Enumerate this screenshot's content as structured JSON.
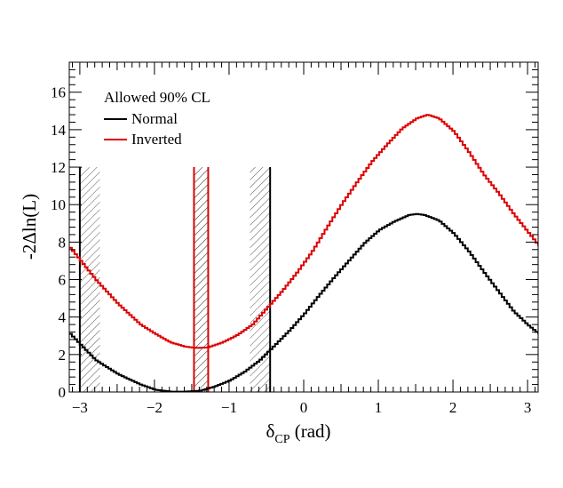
{
  "chart_data": {
    "type": "line",
    "title": "",
    "xlabel": {
      "main": "δ",
      "sub": "CP",
      "rest": " (rad)"
    },
    "ylabel": "-2Δln(L)",
    "xlim": [
      -3.1416,
      3.1416
    ],
    "ylim": [
      0,
      17.6
    ],
    "x_ticks": [
      {
        "value": -3,
        "label": "−3"
      },
      {
        "value": -2,
        "label": "−2"
      },
      {
        "value": -1,
        "label": "−1"
      },
      {
        "value": 0,
        "label": "0"
      },
      {
        "value": 1,
        "label": "1"
      },
      {
        "value": 2,
        "label": "2"
      },
      {
        "value": 3,
        "label": "3"
      }
    ],
    "y_ticks": [
      {
        "value": 0,
        "label": "0"
      },
      {
        "value": 2,
        "label": "2"
      },
      {
        "value": 4,
        "label": "4"
      },
      {
        "value": 6,
        "label": "6"
      },
      {
        "value": 8,
        "label": "8"
      },
      {
        "value": 10,
        "label": "10"
      },
      {
        "value": 12,
        "label": "12"
      },
      {
        "value": 14,
        "label": "14"
      },
      {
        "value": 16,
        "label": "16"
      }
    ],
    "legend": {
      "header": "Allowed 90% CL",
      "placement": "top-left",
      "entries": [
        {
          "label": "Normal",
          "color": "#000000"
        },
        {
          "label": "Inverted",
          "color": "#dd0000"
        }
      ]
    },
    "series": [
      {
        "name": "Normal",
        "color": "#000000",
        "x": [
          -3.1416,
          -2.8,
          -2.5,
          -2.2,
          -2.0,
          -1.8,
          -1.6,
          -1.4,
          -1.2,
          -1.0,
          -0.8,
          -0.6,
          -0.4,
          -0.2,
          0.0,
          0.2,
          0.4,
          0.6,
          0.8,
          1.0,
          1.2,
          1.4,
          1.5,
          1.6,
          1.8,
          2.0,
          2.2,
          2.4,
          2.6,
          2.8,
          3.0,
          3.1416
        ],
        "y": [
          3.1,
          1.7,
          0.95,
          0.4,
          0.12,
          0.02,
          0.02,
          0.07,
          0.3,
          0.62,
          1.1,
          1.7,
          2.5,
          3.3,
          4.2,
          5.2,
          6.15,
          7.05,
          7.95,
          8.65,
          9.1,
          9.45,
          9.5,
          9.45,
          9.15,
          8.45,
          7.5,
          6.4,
          5.35,
          4.3,
          3.55,
          3.1
        ]
      },
      {
        "name": "Inverted",
        "color": "#dd0000",
        "x": [
          -3.1416,
          -2.8,
          -2.5,
          -2.2,
          -2.0,
          -1.8,
          -1.6,
          -1.45,
          -1.3,
          -1.1,
          -0.9,
          -0.7,
          -0.5,
          -0.3,
          -0.1,
          0.1,
          0.3,
          0.5,
          0.7,
          0.9,
          1.1,
          1.3,
          1.5,
          1.65,
          1.8,
          2.0,
          2.2,
          2.4,
          2.6,
          2.8,
          3.0,
          3.1416
        ],
        "y": [
          7.7,
          6.0,
          4.7,
          3.6,
          3.1,
          2.65,
          2.42,
          2.35,
          2.38,
          2.65,
          3.05,
          3.6,
          4.5,
          5.4,
          6.4,
          7.5,
          8.8,
          10.05,
          11.2,
          12.3,
          13.2,
          14.05,
          14.6,
          14.8,
          14.6,
          13.9,
          12.8,
          11.6,
          10.6,
          9.5,
          8.5,
          7.8
        ]
      }
    ],
    "cl_bands": [
      {
        "series": "Normal",
        "color": "#000000",
        "x0": -3.0,
        "x1": -2.73,
        "line_x": -3.0,
        "side": "right",
        "ymax": 12
      },
      {
        "series": "Normal",
        "color": "#000000",
        "x0": -0.72,
        "x1": -0.45,
        "line_x": -0.45,
        "side": "left",
        "ymax": 12
      },
      {
        "series": "Inverted",
        "color": "#dd0000",
        "x0": -1.47,
        "x1": -1.28,
        "line_x": -1.47,
        "side": "right",
        "ymax": 12
      },
      {
        "series": "Inverted",
        "color": "#dd0000",
        "x0": -1.47,
        "x1": -1.28,
        "line_x": -1.28,
        "side": "left",
        "ymax": 12
      }
    ]
  }
}
